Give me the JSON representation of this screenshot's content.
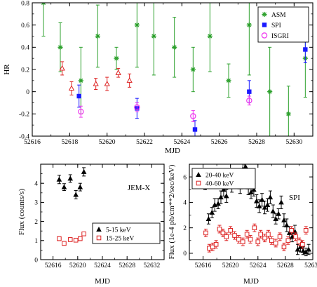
{
  "chart_data": [
    {
      "type": "scatter",
      "panel": "top",
      "xlabel": "MJD",
      "ylabel": "HR",
      "xlim": [
        52616,
        52631
      ],
      "ylim": [
        -0.4,
        0.8
      ],
      "xticks": [
        52616,
        52618,
        52620,
        52622,
        52624,
        52626,
        52628,
        52630
      ],
      "yticks": [
        -0.4,
        -0.2,
        0,
        0.2,
        0.4,
        0.6,
        0.8
      ],
      "yticklabels": [
        "-0.4",
        "-0.2",
        "0",
        "0.2",
        "0.4",
        "0.6",
        "0.8"
      ],
      "legend_position": "top-right",
      "legend": [
        {
          "name": "ASM",
          "marker": "star",
          "color": "#2ca02c"
        },
        {
          "name": "SPI",
          "marker": "square",
          "color": "#1a1aff"
        },
        {
          "name": "ISGRI",
          "marker": "circle",
          "color": "#ee33ee"
        }
      ],
      "series": [
        {
          "name": "ASM",
          "marker": "star",
          "color": "#2ca02c",
          "x": [
            52616.6,
            52617.5,
            52618.6,
            52619.5,
            52620.5,
            52621.6,
            52622.5,
            52623.6,
            52624.6,
            52625.5,
            52626.5,
            52627.6,
            52628.7,
            52629.7,
            52630.6
          ],
          "y": [
            0.8,
            0.4,
            0.1,
            0.5,
            0.3,
            0.6,
            0.5,
            0.4,
            0.2,
            0.5,
            0.1,
            0.6,
            0.0,
            -0.2,
            0.3
          ],
          "err": [
            0.3,
            0.22,
            0.3,
            0.28,
            0.1,
            0.38,
            0.35,
            0.27,
            0.2,
            0.32,
            0.15,
            0.45,
            0.4,
            0.25,
            0.35
          ]
        },
        {
          "name": "SPI",
          "marker": "square",
          "color": "#1a1aff",
          "x": [
            52618.5,
            52621.6,
            52624.7,
            52627.6,
            52630.6
          ],
          "y": [
            -0.04,
            -0.15,
            -0.34,
            0.0,
            0.38
          ],
          "err": [
            0.1,
            0.09,
            0.08,
            0.1,
            0.12
          ]
        },
        {
          "name": "ISGRI",
          "marker": "circle",
          "color": "#ee33ee",
          "x": [
            52618.6,
            52621.6,
            52624.6,
            52627.6
          ],
          "y": [
            -0.18,
            -0.14,
            -0.22,
            -0.08
          ],
          "err": [
            0.05,
            0.04,
            0.05,
            0.04
          ]
        },
        {
          "name": "",
          "marker": "triangle-open",
          "color": "#dd2222",
          "x": [
            52617.6,
            52618.1,
            52619.4,
            52620.0,
            52620.6,
            52621.2
          ],
          "y": [
            0.21,
            0.03,
            0.07,
            0.07,
            0.17,
            0.1
          ],
          "err": [
            0.06,
            0.06,
            0.05,
            0.06,
            0.04,
            0.06
          ]
        }
      ]
    },
    {
      "type": "scatter",
      "panel": "bottom-left",
      "annotation": "JEM-X",
      "xlabel": "MJD",
      "ylabel": "Flux (counts/s)",
      "xlim": [
        52614,
        52634
      ],
      "ylim": [
        0,
        5
      ],
      "xticks": [
        52616,
        52620,
        52624,
        52628,
        52632
      ],
      "yticks": [
        0,
        1,
        2,
        3,
        4
      ],
      "legend_position": "bottom-right",
      "legend": [
        {
          "name": "5-15 keV",
          "marker": "triangle",
          "color": "#000000"
        },
        {
          "name": "15-25 keV",
          "marker": "square-open",
          "color": "#dd2222"
        }
      ],
      "series": [
        {
          "name": "5-15 keV",
          "marker": "triangle",
          "color": "#000000",
          "x": [
            52617.0,
            52617.8,
            52618.8,
            52619.7,
            52620.4,
            52621.0
          ],
          "y": [
            4.2,
            3.8,
            4.25,
            3.4,
            3.8,
            4.6
          ],
          "err": [
            0.22,
            0.18,
            0.2,
            0.22,
            0.2,
            0.22
          ]
        },
        {
          "name": "15-25 keV",
          "marker": "square-open",
          "color": "#dd2222",
          "x": [
            52617.0,
            52617.8,
            52618.8,
            52619.7,
            52620.4,
            52621.0
          ],
          "y": [
            1.1,
            0.85,
            1.05,
            1.02,
            1.1,
            1.35
          ],
          "err": [
            0.1,
            0.08,
            0.1,
            0.08,
            0.1,
            0.1
          ]
        }
      ]
    },
    {
      "type": "scatter",
      "panel": "bottom-right",
      "annotation": "SPI",
      "xlabel": "MJD",
      "ylabel": "Flux (1e-4 ph/cm**2/sec/keV)",
      "xlim": [
        52614,
        52632
      ],
      "ylim": [
        -0.5,
        7
      ],
      "xticks": [
        52616,
        52620,
        52624,
        52628,
        52632
      ],
      "yticks": [
        0,
        2,
        4,
        6
      ],
      "legend_position": "top-left",
      "legend": [
        {
          "name": "20-40 keV",
          "marker": "triangle",
          "color": "#000000"
        },
        {
          "name": "40-60 keV",
          "marker": "square-open",
          "color": "#dd2222"
        }
      ],
      "series": [
        {
          "name": "20-40 keV",
          "marker": "triangle",
          "color": "#000000",
          "x": [
            52616.3,
            52616.8,
            52617.3,
            52617.7,
            52618.2,
            52618.6,
            52619.0,
            52619.4,
            52619.8,
            52620.2,
            52620.6,
            52621.0,
            52621.4,
            52621.8,
            52622.2,
            52622.6,
            52623.0,
            52623.4,
            52623.8,
            52624.2,
            52624.6,
            52625.0,
            52625.4,
            52625.8,
            52626.2,
            52626.6,
            52627.0,
            52627.4,
            52627.8,
            52628.2,
            52628.6,
            52629.0,
            52629.4,
            52629.8,
            52630.2,
            52630.6,
            52631.0,
            52631.4
          ],
          "y": [
            5.5,
            2.7,
            3.2,
            3.8,
            3.9,
            4.4,
            5.0,
            4.5,
            5.8,
            5.3,
            6.0,
            5.6,
            5.2,
            6.6,
            6.8,
            5.2,
            4.8,
            5.0,
            4.1,
            3.7,
            4.2,
            3.6,
            3.8,
            4.4,
            3.3,
            2.7,
            3.1,
            4.0,
            2.6,
            2.2,
            1.6,
            1.3,
            1.7,
            0.3,
            0.5,
            0.2,
            0.1,
            0.3
          ],
          "err": [
            0.5,
            0.4,
            0.4,
            0.5,
            0.4,
            0.5,
            0.5,
            0.5,
            0.6,
            0.5,
            0.6,
            0.5,
            0.5,
            0.6,
            0.6,
            0.6,
            0.5,
            0.5,
            0.5,
            0.5,
            0.5,
            0.5,
            0.5,
            0.5,
            0.5,
            0.4,
            0.4,
            0.5,
            0.5,
            0.5,
            0.5,
            0.4,
            0.5,
            0.4,
            0.4,
            0.3,
            0.3,
            0.4
          ]
        },
        {
          "name": "40-60 keV",
          "marker": "square-open",
          "color": "#dd2222",
          "x": [
            52616.4,
            52616.9,
            52617.4,
            52617.9,
            52618.4,
            52618.9,
            52619.4,
            52620.0,
            52620.6,
            52621.2,
            52621.8,
            52622.4,
            52622.9,
            52623.5,
            52624.0,
            52624.4,
            52625.0,
            52625.5,
            52626.0,
            52626.6,
            52627.2,
            52627.8,
            52628.4,
            52628.9,
            52629.5,
            52630.0,
            52630.5,
            52631.0
          ],
          "y": [
            1.6,
            0.4,
            0.5,
            0.7,
            1.9,
            1.6,
            1.3,
            1.8,
            1.4,
            1.1,
            0.9,
            1.5,
            1.1,
            2.0,
            0.9,
            1.5,
            1.2,
            1.5,
            1.0,
            0.8,
            1.3,
            0.5,
            1.0,
            1.8,
            1.3,
            0.9,
            0.7,
            1.8
          ],
          "err": [
            0.3,
            0.3,
            0.3,
            0.3,
            0.3,
            0.3,
            0.3,
            0.3,
            0.3,
            0.3,
            0.3,
            0.3,
            0.3,
            0.3,
            0.3,
            0.3,
            0.3,
            0.3,
            0.3,
            0.3,
            0.3,
            0.3,
            0.3,
            0.3,
            0.3,
            0.3,
            0.3,
            0.3
          ]
        }
      ]
    }
  ]
}
